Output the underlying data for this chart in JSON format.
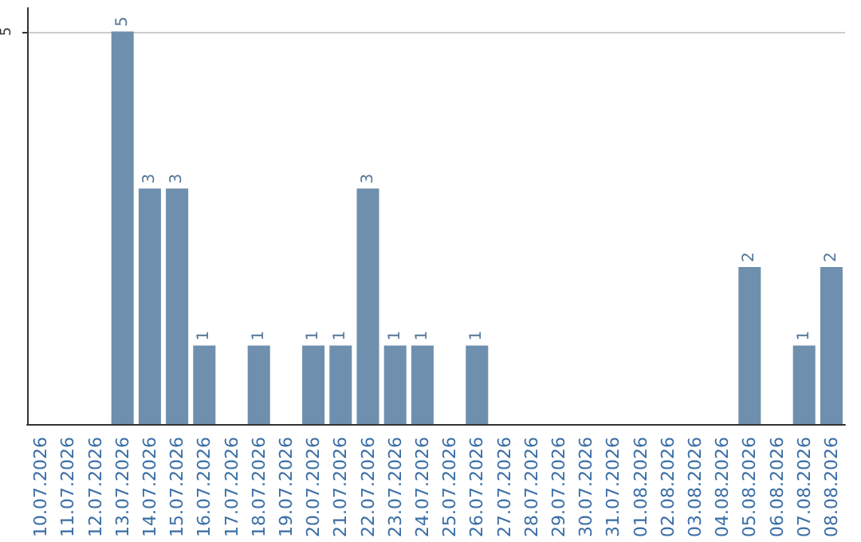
{
  "chart_data": {
    "type": "bar",
    "categories": [
      "10.07.2026",
      "11.07.2026",
      "12.07.2026",
      "13.07.2026",
      "14.07.2026",
      "15.07.2026",
      "16.07.2026",
      "17.07.2026",
      "18.07.2026",
      "19.07.2026",
      "20.07.2026",
      "21.07.2026",
      "22.07.2026",
      "23.07.2026",
      "24.07.2026",
      "25.07.2026",
      "26.07.2026",
      "27.07.2026",
      "28.07.2026",
      "29.07.2026",
      "30.07.2026",
      "31.07.2026",
      "01.08.2026",
      "02.08.2026",
      "03.08.2026",
      "04.08.2026",
      "05.08.2026",
      "06.08.2026",
      "07.08.2026",
      "08.08.2026"
    ],
    "values": [
      0,
      0,
      0,
      5,
      3,
      3,
      1,
      0,
      1,
      0,
      1,
      1,
      3,
      1,
      1,
      0,
      1,
      0,
      0,
      0,
      0,
      0,
      0,
      0,
      0,
      0,
      2,
      0,
      1,
      2
    ],
    "value_labels": [
      null,
      null,
      null,
      "5",
      "3",
      "3",
      "1",
      null,
      "1",
      null,
      "1",
      "1",
      "3",
      "1",
      "1",
      null,
      "1",
      null,
      null,
      null,
      null,
      null,
      null,
      null,
      null,
      null,
      "2",
      null,
      "1",
      "2"
    ],
    "color": "#6f8fae",
    "ylim": [
      0,
      5.3
    ],
    "yticks": [
      5
    ],
    "grid": "y"
  }
}
